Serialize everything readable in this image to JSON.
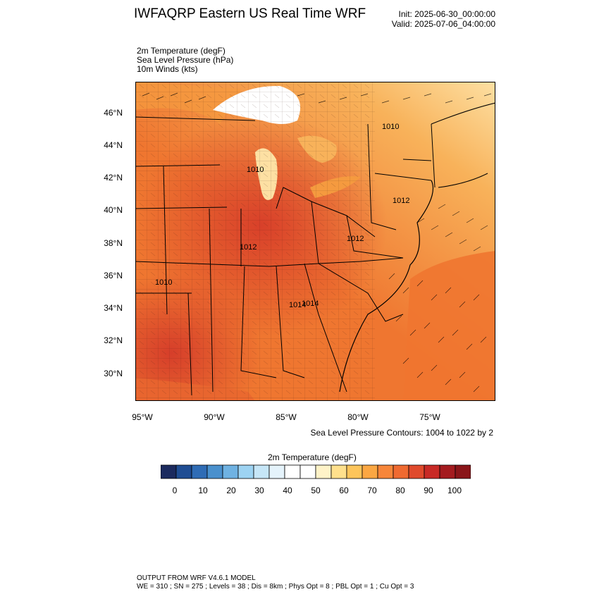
{
  "header": {
    "title": "IWFAQRP Eastern US Real Time WRF",
    "init": "Init: 2025-06-30_00:00:00",
    "valid": "Valid: 2025-07-06_04:00:00"
  },
  "fields": [
    "2m Temperature   (degF)",
    "Sea Level Pressure   (hPa)",
    "10m Winds   (kts)"
  ],
  "axes": {
    "lat_labels": [
      "46°N",
      "44°N",
      "42°N",
      "40°N",
      "38°N",
      "36°N",
      "34°N",
      "32°N",
      "30°N"
    ],
    "lon_labels": [
      "95°W",
      "90°W",
      "85°W",
      "80°W",
      "75°W"
    ]
  },
  "contours": {
    "note": "Sea Level Pressure Contours: 1004 to 1022 by 2",
    "labels": [
      "1010",
      "1010",
      "1012",
      "1012",
      "1012",
      "1010",
      "1014",
      "1014"
    ]
  },
  "colorbar": {
    "title": "2m Temperature  (degF)",
    "colors": [
      "#1b2a5e",
      "#1f4d93",
      "#2f6cb5",
      "#4a90cd",
      "#6fb2e2",
      "#9dd3f2",
      "#c6e6f7",
      "#e5f3fb",
      "#ffffff",
      "#ffffff",
      "#fff3c8",
      "#ffe08c",
      "#fdc55b",
      "#fba743",
      "#f7863a",
      "#ef6a31",
      "#e04a2c",
      "#c82a26",
      "#a41b1f",
      "#8a1519"
    ],
    "tick_labels": [
      "0",
      "10",
      "20",
      "30",
      "40",
      "50",
      "60",
      "70",
      "80",
      "90",
      "100"
    ],
    "colors_map": {
      "hot": "#d8402a",
      "warm": "#ef7630",
      "mild": "#f59a3f",
      "cool": "#fbc168",
      "cooler": "#fde0a3",
      "cold": "#ffffff"
    }
  },
  "footer": {
    "line1": "OUTPUT FROM WRF V4.6.1 MODEL",
    "line2": "WE = 310 ; SN = 275 ; Levels = 38 ; Dis = 8km ; Phys Opt = 8 ; PBL Opt = 1 ; Cu Opt = 3"
  }
}
